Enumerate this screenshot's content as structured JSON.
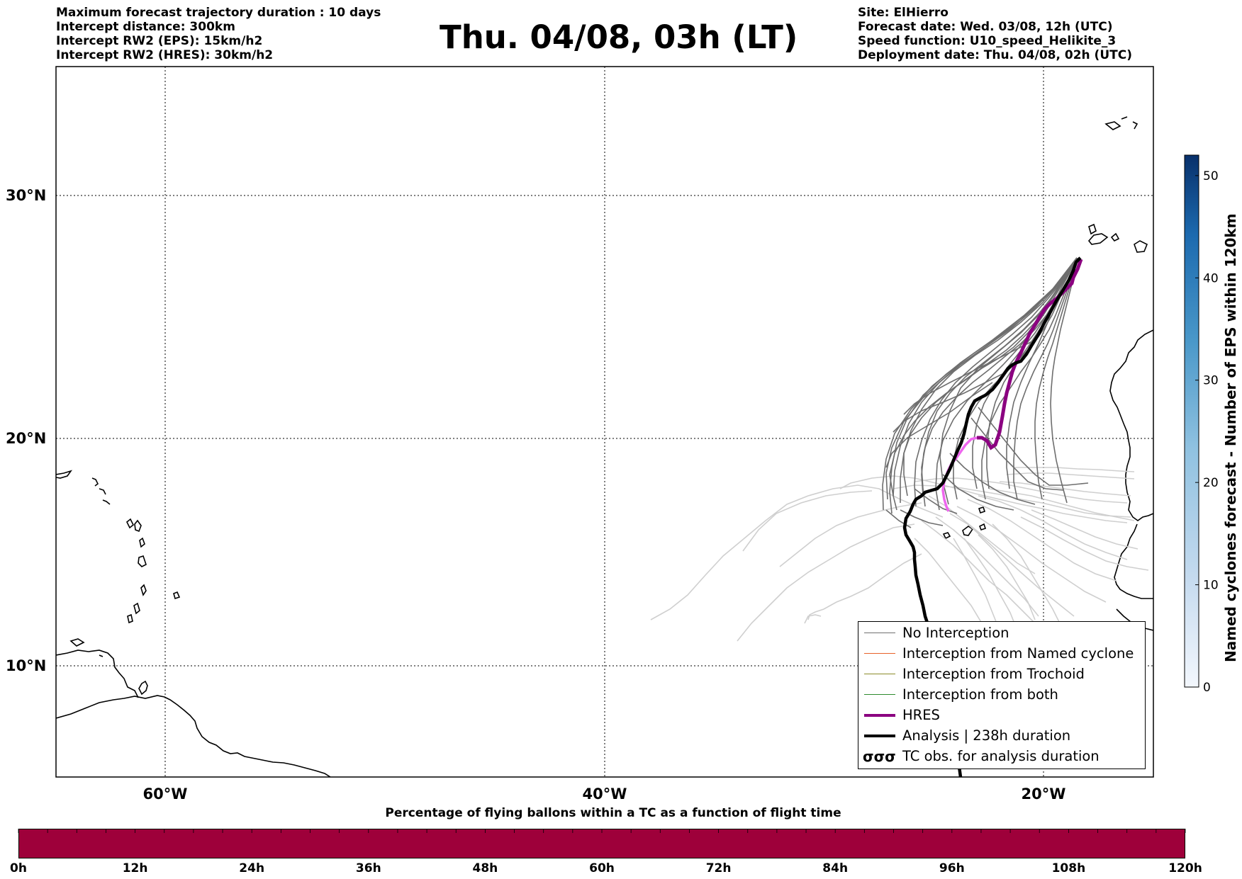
{
  "header": {
    "left_lines": [
      "Maximum forecast trajectory duration : 10 days",
      "Intercept distance: 300km",
      "Intercept RW2 (EPS):  15km/h2",
      "Intercept RW2 (HRES): 30km/h2"
    ],
    "title": "Thu. 04/08, 03h (LT)",
    "right_lines": [
      "Site: ElHierro",
      "Forecast date: Wed. 03/08, 12h (UTC)",
      "Speed function: U10_speed_Helikite_3",
      "Deployment date: Thu. 04/08, 02h (UTC)"
    ]
  },
  "map": {
    "lat_labels": [
      "30°N",
      "20°N",
      "10°N"
    ],
    "lon_labels": [
      "60°W",
      "40°W",
      "20°W"
    ],
    "colors": {
      "no_interception": "#707070",
      "named_cyclone": "#e8622a",
      "trochoid": "#8c8c2a",
      "both": "#2e8b2e",
      "hres": "#8b0080",
      "hres_late": "#ee66ee",
      "analysis": "#000000",
      "late_trajectories": "#cfcfcf"
    }
  },
  "legend": {
    "items": [
      {
        "label": "No Interception",
        "color": "#707070",
        "style": "thin"
      },
      {
        "label": "Interception from Named cyclone",
        "color": "#e8622a",
        "style": "thin"
      },
      {
        "label": "Interception from Trochoid",
        "color": "#8c8c2a",
        "style": "thin"
      },
      {
        "label": "Interception from both",
        "color": "#2e8b2e",
        "style": "thin"
      },
      {
        "label": "HRES",
        "color": "#8b0080",
        "style": "thick"
      },
      {
        "label": "Analysis | 238h duration",
        "color": "#000000",
        "style": "thick"
      },
      {
        "label": "TC obs. for analysis duration",
        "color": "#000000",
        "style": "symbol",
        "symbol": "σσσ"
      }
    ]
  },
  "colorbar": {
    "label": "Named cyclones forecast - Number of EPS within 120km",
    "ticks": [
      "0",
      "10",
      "20",
      "30",
      "40",
      "50"
    ],
    "range": [
      0,
      52
    ]
  },
  "flight_bar": {
    "title": "Percentage of flying ballons within a TC as a function of flight time",
    "ticks": [
      "0h",
      "12h",
      "24h",
      "36h",
      "48h",
      "60h",
      "72h",
      "84h",
      "96h",
      "108h",
      "120h"
    ],
    "color": "#9e003a"
  }
}
